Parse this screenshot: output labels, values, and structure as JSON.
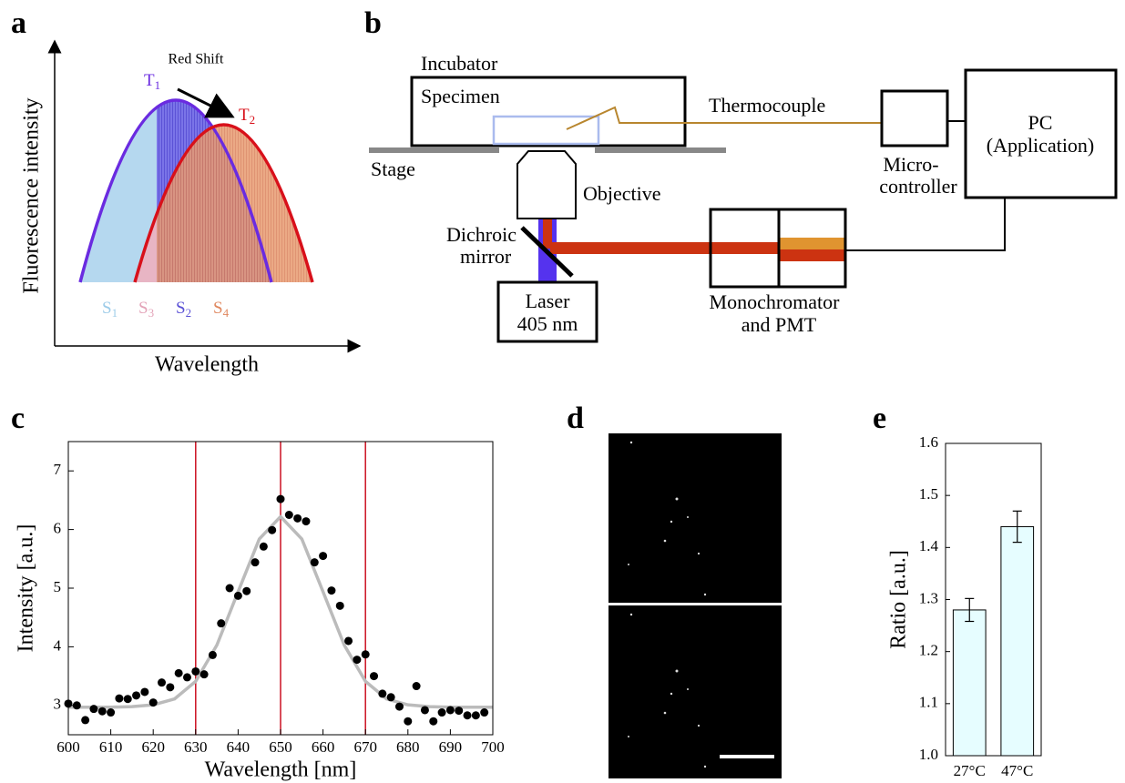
{
  "panel_labels": [
    "a",
    "b",
    "c",
    "d",
    "e"
  ],
  "diagram_a": {
    "y_axis_label": "Fluorescence intensity",
    "x_axis_label": "Wavelength",
    "annotation": "Red Shift",
    "curve_labels": [
      {
        "main": "T",
        "sub": "1"
      },
      {
        "main": "T",
        "sub": "2"
      }
    ],
    "area_labels": [
      {
        "main": "S",
        "sub": "1"
      },
      {
        "main": "S",
        "sub": "3"
      },
      {
        "main": "S",
        "sub": "2"
      },
      {
        "main": "S",
        "sub": "4"
      }
    ]
  },
  "diagram_b": {
    "incubator": "Incubator",
    "specimen": "Specimen",
    "thermocouple": "Thermocouple",
    "stage": "Stage",
    "objective": "Objective",
    "dichroic_mirror": [
      "Dichroic",
      "mirror"
    ],
    "laser": [
      "Laser",
      "405 nm"
    ],
    "monochromator": [
      "Monochromator",
      "and PMT"
    ],
    "microcontroller": [
      "Micro-",
      "controller"
    ],
    "pc": [
      "PC",
      "(Application)"
    ]
  },
  "chart_data": [
    {
      "type": "scatter",
      "x_label": "Wavelength [nm]",
      "y_label": "Intensity [a.u.]",
      "xlim": [
        600,
        700
      ],
      "ylim": [
        2.5,
        7.5
      ],
      "xticks": [
        600,
        610,
        620,
        630,
        640,
        650,
        660,
        670,
        680,
        690,
        700
      ],
      "yticks": [
        3,
        4,
        5,
        6,
        7
      ],
      "vlines": [
        630,
        650,
        670
      ],
      "vline_color": "#cc1122",
      "series": [
        {
          "type": "scatter",
          "color": "#000000",
          "x": [
            600,
            602,
            604,
            606,
            608,
            610,
            612,
            614,
            616,
            618,
            620,
            622,
            624,
            626,
            628,
            630,
            632,
            634,
            636,
            638,
            640,
            642,
            644,
            646,
            648,
            650,
            652,
            654,
            656,
            658,
            660,
            662,
            664,
            666,
            668,
            670,
            672,
            674,
            676,
            678,
            680,
            682,
            684,
            686,
            688,
            690,
            692,
            694,
            696,
            698
          ],
          "values": [
            3.03,
            3.0,
            2.75,
            2.94,
            2.9,
            2.88,
            3.12,
            3.11,
            3.17,
            3.23,
            3.05,
            3.39,
            3.31,
            3.55,
            3.48,
            3.58,
            3.53,
            3.86,
            4.4,
            5.0,
            4.87,
            4.95,
            5.44,
            5.71,
            5.99,
            6.52,
            6.25,
            6.19,
            6.14,
            5.44,
            5.55,
            4.96,
            4.7,
            4.1,
            3.78,
            3.87,
            3.5,
            3.2,
            3.14,
            2.98,
            2.73,
            3.33,
            2.92,
            2.73,
            2.88,
            2.92,
            2.91,
            2.83,
            2.83,
            2.88
          ]
        },
        {
          "type": "line",
          "color": "#bbbbbb",
          "x": [
            600,
            605,
            610,
            615,
            620,
            625,
            630,
            635,
            640,
            645,
            650,
            655,
            660,
            665,
            670,
            675,
            680,
            685,
            690,
            695,
            700
          ],
          "values": [
            2.97,
            2.97,
            2.97,
            2.98,
            3.01,
            3.11,
            3.41,
            4.03,
            4.94,
            5.84,
            6.22,
            5.84,
            4.94,
            4.03,
            3.41,
            3.11,
            3.01,
            2.98,
            2.97,
            2.97,
            2.97
          ]
        }
      ]
    },
    {
      "type": "bar",
      "y_label": "Ratio [a.u.]",
      "categories": [
        "27°C",
        "47°C"
      ],
      "values": [
        1.28,
        1.44
      ],
      "errors": [
        0.022,
        0.03
      ],
      "color": "#e6fdff",
      "ylim": [
        1.0,
        1.6
      ],
      "yticks": [
        {
          "value": 1.0,
          "label": "1.0"
        },
        1.1,
        1.2,
        1.3,
        1.4,
        1.5,
        1.6
      ]
    }
  ]
}
